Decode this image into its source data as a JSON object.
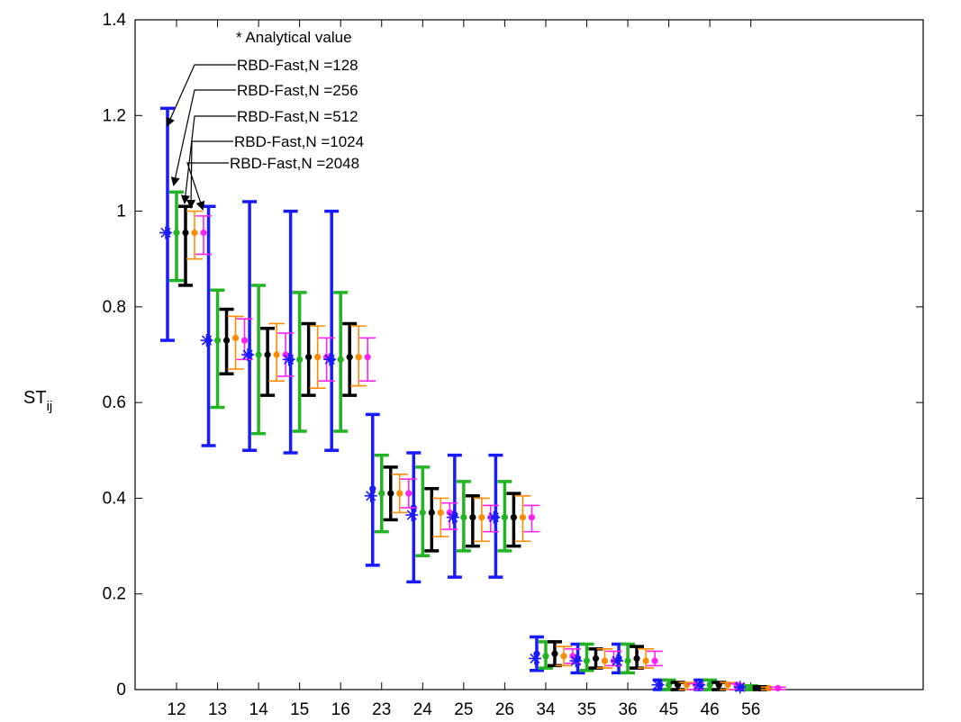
{
  "chart_data": {
    "type": "scatter",
    "categories": [
      "12",
      "13",
      "14",
      "15",
      "16",
      "23",
      "24",
      "25",
      "26",
      "34",
      "35",
      "36",
      "45",
      "46",
      "56"
    ],
    "ylabel": "ST",
    "ylabel_sub": "ij",
    "xlabel": "",
    "ylim": [
      0,
      1.4
    ],
    "yticks": [
      0,
      0.2,
      0.4,
      0.6,
      0.8,
      1,
      1.2,
      1.4
    ],
    "ytick_labels": [
      "0",
      "0.2",
      "0.4",
      "0.6",
      "0.8",
      "1",
      "1.2",
      "1.4"
    ],
    "grid": false,
    "analytical": {
      "label": "* Analytical value",
      "color": "#1a1aff",
      "values": [
        0.955,
        0.73,
        0.7,
        0.69,
        0.69,
        0.405,
        0.365,
        0.36,
        0.36,
        0.065,
        0.06,
        0.06,
        0.01,
        0.01,
        0.005
      ]
    },
    "series": [
      {
        "name": "RBD-Fast,N =128",
        "color": "#1a1aff",
        "mean": [
          0.955,
          0.73,
          0.7,
          0.69,
          0.69,
          0.42,
          0.38,
          0.365,
          0.36,
          0.075,
          0.065,
          0.065,
          0.01,
          0.01,
          0.003
        ],
        "lower": [
          0.73,
          0.51,
          0.5,
          0.495,
          0.5,
          0.26,
          0.225,
          0.235,
          0.235,
          0.04,
          0.035,
          0.035,
          0.0,
          0.0,
          0.0
        ],
        "upper": [
          1.215,
          1.01,
          1.02,
          1.0,
          1.0,
          0.575,
          0.495,
          0.49,
          0.49,
          0.11,
          0.095,
          0.095,
          0.02,
          0.02,
          0.008
        ]
      },
      {
        "name": "RBD-Fast,N =256",
        "color": "#22b422",
        "mean": [
          0.955,
          0.73,
          0.7,
          0.69,
          0.69,
          0.41,
          0.37,
          0.36,
          0.36,
          0.07,
          0.06,
          0.06,
          0.01,
          0.01,
          0.003
        ],
        "lower": [
          0.855,
          0.59,
          0.535,
          0.54,
          0.54,
          0.33,
          0.28,
          0.29,
          0.29,
          0.045,
          0.04,
          0.035,
          0.0,
          0.0,
          0.0
        ],
        "upper": [
          1.04,
          0.835,
          0.845,
          0.83,
          0.83,
          0.49,
          0.465,
          0.435,
          0.435,
          0.1,
          0.095,
          0.095,
          0.02,
          0.02,
          0.008
        ]
      },
      {
        "name": "RBD-Fast,N =512",
        "color": "#000000",
        "mean": [
          0.955,
          0.73,
          0.7,
          0.695,
          0.695,
          0.41,
          0.37,
          0.36,
          0.36,
          0.075,
          0.065,
          0.065,
          0.01,
          0.01,
          0.003
        ],
        "lower": [
          0.845,
          0.66,
          0.615,
          0.615,
          0.615,
          0.355,
          0.29,
          0.3,
          0.3,
          0.05,
          0.045,
          0.045,
          0.0,
          0.0,
          0.0
        ],
        "upper": [
          1.01,
          0.795,
          0.755,
          0.765,
          0.765,
          0.465,
          0.42,
          0.405,
          0.41,
          0.1,
          0.085,
          0.09,
          0.015,
          0.015,
          0.006
        ]
      },
      {
        "name": "RBD-Fast,N =1024",
        "color": "#ff8c00",
        "mean": [
          0.955,
          0.735,
          0.7,
          0.695,
          0.695,
          0.41,
          0.37,
          0.36,
          0.36,
          0.07,
          0.06,
          0.06,
          0.01,
          0.01,
          0.003
        ],
        "lower": [
          0.9,
          0.67,
          0.645,
          0.63,
          0.635,
          0.37,
          0.32,
          0.31,
          0.31,
          0.05,
          0.045,
          0.045,
          0.0,
          0.0,
          0.0
        ],
        "upper": [
          1.0,
          0.78,
          0.765,
          0.76,
          0.76,
          0.45,
          0.4,
          0.4,
          0.405,
          0.09,
          0.085,
          0.085,
          0.015,
          0.015,
          0.005
        ]
      },
      {
        "name": "RBD-Fast,N =2048",
        "color": "#ff22ee",
        "mean": [
          0.955,
          0.73,
          0.7,
          0.695,
          0.695,
          0.41,
          0.37,
          0.36,
          0.36,
          0.07,
          0.06,
          0.06,
          0.01,
          0.01,
          0.003
        ],
        "lower": [
          0.91,
          0.69,
          0.655,
          0.645,
          0.645,
          0.38,
          0.335,
          0.33,
          0.33,
          0.055,
          0.05,
          0.05,
          0.0,
          0.0,
          0.0
        ],
        "upper": [
          0.99,
          0.775,
          0.745,
          0.735,
          0.735,
          0.44,
          0.39,
          0.385,
          0.385,
          0.085,
          0.08,
          0.08,
          0.012,
          0.012,
          0.005
        ]
      }
    ]
  }
}
